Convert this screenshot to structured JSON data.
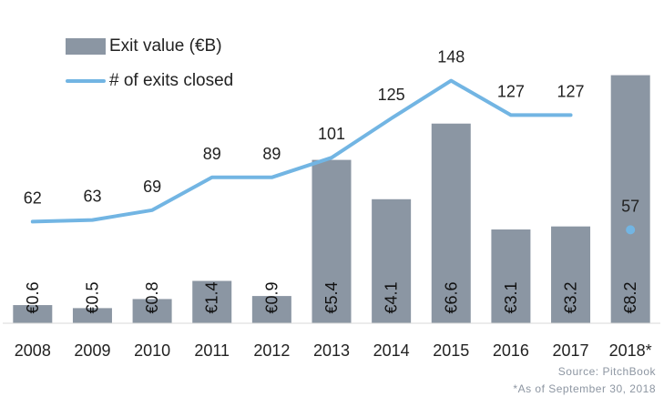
{
  "chart_data": {
    "type": "bar",
    "categories": [
      "2008",
      "2009",
      "2010",
      "2011",
      "2012",
      "2013",
      "2014",
      "2015",
      "2016",
      "2017",
      "2018*"
    ],
    "series": [
      {
        "name": "Exit value (€B)",
        "type": "bar",
        "values": [
          0.6,
          0.5,
          0.8,
          1.4,
          0.9,
          5.4,
          4.1,
          6.6,
          3.1,
          3.2,
          8.2
        ],
        "labels": [
          "€0.6",
          "€0.5",
          "€0.8",
          "€1.4",
          "€0.9",
          "€5.4",
          "€4.1",
          "€6.6",
          "€3.1",
          "€3.2",
          "€8.2"
        ],
        "color": "#8b96a3"
      },
      {
        "name": "# of exits closed",
        "type": "line",
        "values": [
          62,
          63,
          69,
          89,
          89,
          101,
          125,
          148,
          127,
          127,
          57
        ],
        "labels": [
          "62",
          "63",
          "69",
          "89",
          "89",
          "101",
          "125",
          "148",
          "127",
          "127",
          "57"
        ],
        "color": "#72b5e3",
        "last_point_style": "dot"
      }
    ],
    "ylim_bars": [
      0,
      9
    ],
    "ylim_line": [
      0,
      160
    ],
    "grid": false,
    "legend_position": "top-left"
  },
  "footnotes": {
    "source": "Source: PitchBook",
    "as_of": "*As of September 30, 2018"
  }
}
